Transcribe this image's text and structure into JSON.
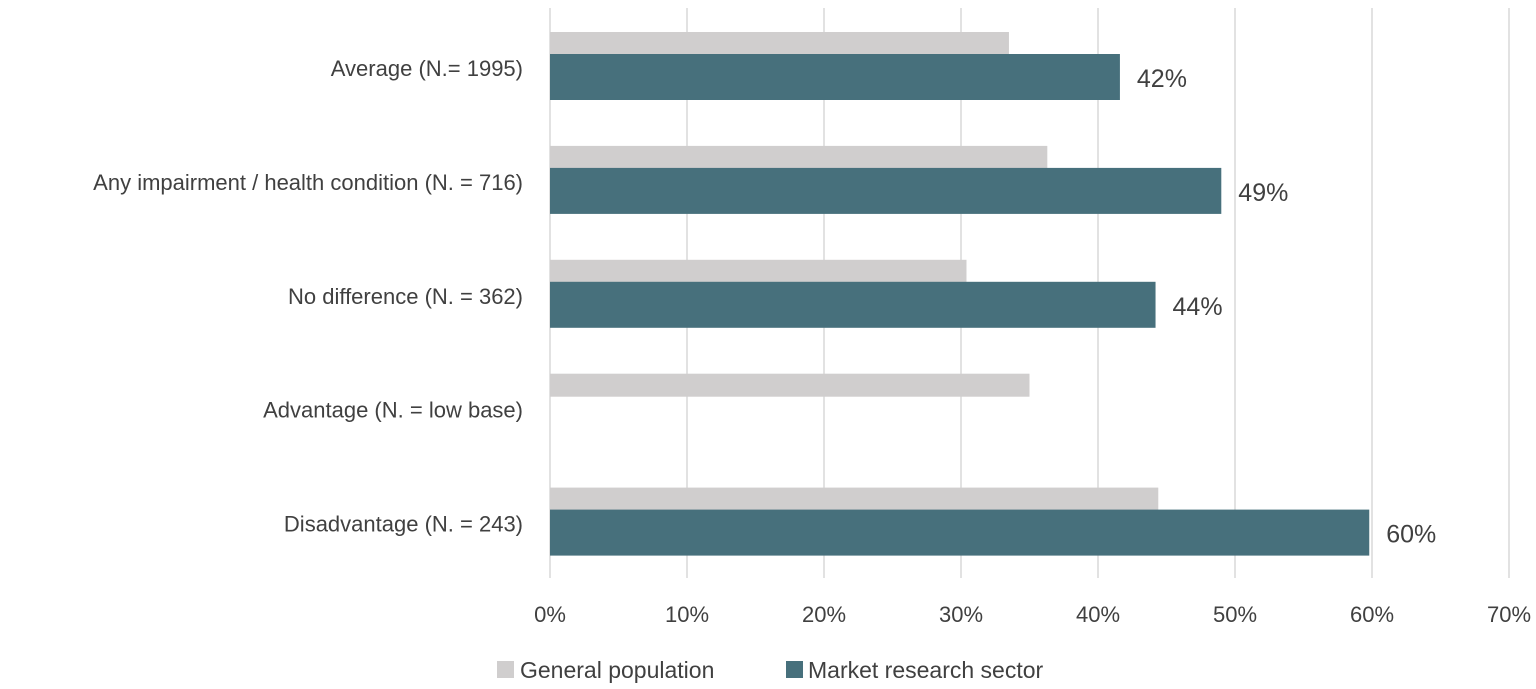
{
  "chart_data": {
    "type": "bar",
    "orientation": "horizontal",
    "categories": [
      "Average (N.= 1995)",
      "Any impairment / health condition (N. = 716)",
      "No difference (N. = 362)",
      "Advantage (N. = low base)",
      "Disadvantage (N. = 243)"
    ],
    "series": [
      {
        "name": "General population",
        "color": "#d0cece",
        "values": [
          33.5,
          36.3,
          30.4,
          35.0,
          44.4
        ],
        "data_labels": [
          "",
          "",
          "",
          "",
          ""
        ]
      },
      {
        "name": "Market research sector",
        "color": "#47707c",
        "values": [
          41.6,
          49.0,
          44.2,
          null,
          59.8
        ],
        "data_labels": [
          "42%",
          "49%",
          "44%",
          "",
          "60%"
        ]
      }
    ],
    "xlim": [
      0,
      70
    ],
    "xticks": [
      0,
      10,
      20,
      30,
      40,
      50,
      60,
      70
    ],
    "xtick_labels": [
      "0%",
      "10%",
      "20%",
      "30%",
      "40%",
      "50%",
      "60%",
      "70%"
    ],
    "grid": true,
    "legend_position": "bottom",
    "colors": {
      "gridline": "#d9d9d9",
      "text": "#404040"
    }
  }
}
